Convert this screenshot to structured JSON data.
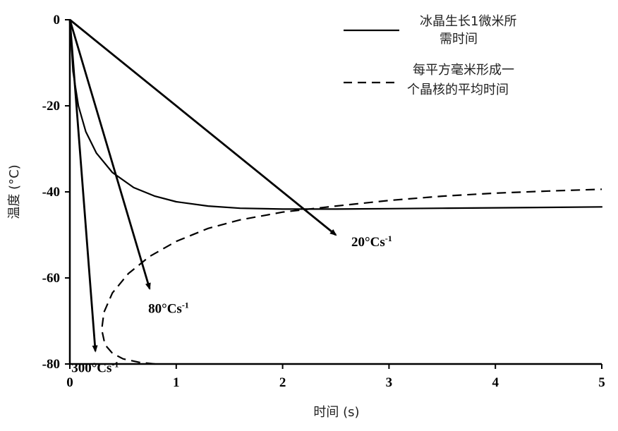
{
  "chart_data": {
    "type": "line",
    "xlabel": "时间 (s)",
    "ylabel": "温度 (°C)",
    "xlim": [
      0,
      5
    ],
    "ylim": [
      -80,
      0
    ],
    "x_ticks": [
      "0",
      "1",
      "2",
      "3",
      "4",
      "5"
    ],
    "y_ticks": [
      "0",
      "-20",
      "-40",
      "-60",
      "-80"
    ],
    "grid": false,
    "legend_position": "top-right",
    "legend": [
      {
        "style": "solid",
        "lines": [
          "冰晶生长1微米所",
          "需时间"
        ]
      },
      {
        "style": "dashed",
        "lines": [
          "每平方毫米形成一",
          "个晶核的平均时间"
        ]
      }
    ],
    "series": [
      {
        "style": "solid",
        "points": [
          [
            0.0,
            0
          ],
          [
            0.03,
            -12
          ],
          [
            0.08,
            -20
          ],
          [
            0.15,
            -26
          ],
          [
            0.25,
            -31
          ],
          [
            0.4,
            -35.5
          ],
          [
            0.6,
            -39
          ],
          [
            0.8,
            -41
          ],
          [
            1.0,
            -42.3
          ],
          [
            1.3,
            -43.3
          ],
          [
            1.6,
            -43.8
          ],
          [
            2.0,
            -44
          ],
          [
            2.5,
            -44
          ],
          [
            3.0,
            -43.9
          ],
          [
            3.5,
            -43.8
          ],
          [
            4.0,
            -43.7
          ],
          [
            4.5,
            -43.6
          ],
          [
            5.0,
            -43.5
          ]
        ]
      },
      {
        "style": "dashed",
        "points": [
          [
            0.8,
            -80
          ],
          [
            0.65,
            -79.6
          ],
          [
            0.5,
            -78.8
          ],
          [
            0.4,
            -77.5
          ],
          [
            0.33,
            -75.5
          ],
          [
            0.3,
            -72
          ],
          [
            0.32,
            -68
          ],
          [
            0.4,
            -63.5
          ],
          [
            0.55,
            -59
          ],
          [
            0.75,
            -55
          ],
          [
            1.0,
            -51.5
          ],
          [
            1.3,
            -48.5
          ],
          [
            1.6,
            -46.5
          ],
          [
            2.0,
            -44.7
          ],
          [
            2.5,
            -43.3
          ],
          [
            3.0,
            -42
          ],
          [
            3.5,
            -41
          ],
          [
            4.0,
            -40.3
          ],
          [
            4.5,
            -39.8
          ],
          [
            5.0,
            -39.4
          ]
        ]
      }
    ],
    "arrows": [
      {
        "label": "20°Cs",
        "sup": "-1",
        "from": [
          0,
          0
        ],
        "to": [
          2.5,
          -50
        ]
      },
      {
        "label": "80°Cs",
        "sup": "-1",
        "from": [
          0,
          0
        ],
        "to": [
          0.75,
          -62.5
        ]
      },
      {
        "label": "300°Cs",
        "sup": "-1",
        "from": [
          0,
          0
        ],
        "to": [
          0.24,
          -77
        ]
      }
    ]
  }
}
